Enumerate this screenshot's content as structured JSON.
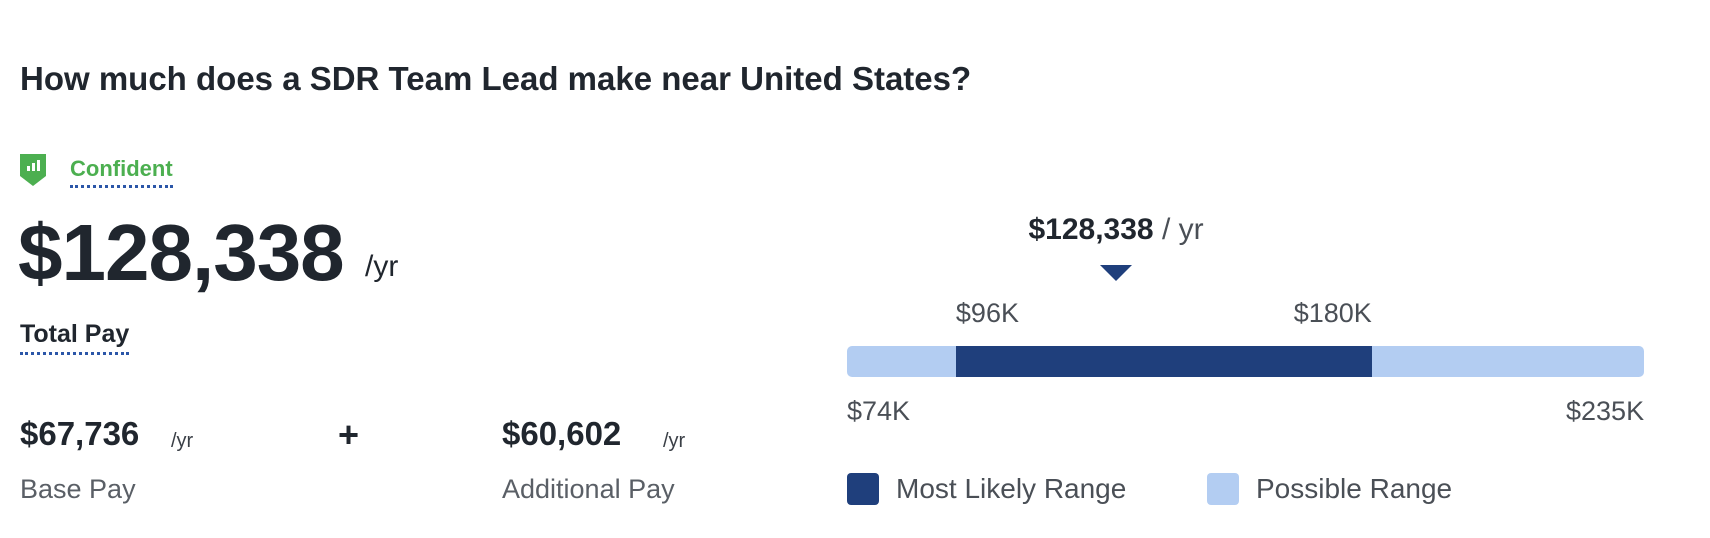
{
  "header": {
    "title": "How much does a SDR Team Lead make near United States?"
  },
  "confidence": {
    "label": "Confident",
    "icon": "shield-bar-chart-icon",
    "color": "#4caf50"
  },
  "total_pay": {
    "value": "$128,338",
    "unit": "/yr",
    "label": "Total Pay"
  },
  "base_pay": {
    "value": "$67,736",
    "unit": "/yr",
    "label": "Base Pay"
  },
  "plus_sign": "+",
  "additional_pay": {
    "value": "$60,602",
    "unit": "/yr",
    "label": "Additional Pay"
  },
  "chart_data": {
    "type": "range",
    "marker": {
      "value": 128338,
      "label": "$128,338",
      "unit": "/ yr"
    },
    "possible_range": {
      "min": 74000,
      "max": 235000,
      "min_label": "$74K",
      "max_label": "$235K"
    },
    "likely_range": {
      "min": 96000,
      "max": 180000,
      "min_label": "$96K",
      "max_label": "$180K"
    },
    "legend": [
      {
        "label": "Most Likely Range",
        "color": "#1f3f7c"
      },
      {
        "label": "Possible Range",
        "color": "#b3cdf2"
      }
    ]
  }
}
